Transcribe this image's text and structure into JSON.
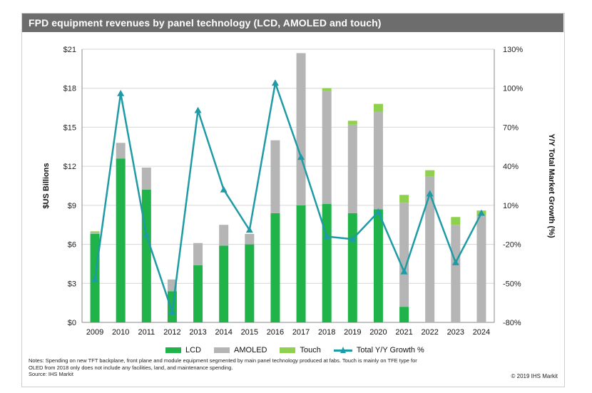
{
  "chart_data": {
    "type": "bar",
    "title": "FPD equipment revenues by panel technology (LCD, AMOLED and touch)",
    "categories": [
      "2009",
      "2010",
      "2011",
      "2012",
      "2013",
      "2014",
      "2015",
      "2016",
      "2017",
      "2018",
      "2019",
      "2020",
      "2021",
      "2022",
      "2023",
      "2024"
    ],
    "series": [
      {
        "name": "LCD",
        "type": "stacked-bar",
        "axis": "left",
        "color": "#1fb34a",
        "values": [
          6.8,
          12.6,
          10.2,
          2.4,
          4.4,
          5.9,
          6.0,
          8.4,
          9.0,
          9.1,
          8.4,
          8.7,
          1.2,
          0.0,
          0.0,
          0.0
        ]
      },
      {
        "name": "AMOLED",
        "type": "stacked-bar",
        "axis": "left",
        "color": "#b5b5b5",
        "values": [
          0.1,
          1.2,
          1.7,
          0.9,
          1.7,
          1.6,
          0.8,
          5.6,
          11.7,
          8.7,
          6.8,
          7.5,
          8.0,
          11.2,
          7.5,
          8.2
        ]
      },
      {
        "name": "Touch",
        "type": "stacked-bar",
        "axis": "left",
        "color": "#8fd14f",
        "values": [
          0.1,
          0.0,
          0.0,
          0.0,
          0.0,
          0.0,
          0.0,
          0.0,
          0.0,
          0.2,
          0.3,
          0.6,
          0.6,
          0.5,
          0.6,
          0.4
        ]
      },
      {
        "name": "Total Y/Y Growth %",
        "type": "line",
        "axis": "right",
        "color": "#1e9ba4",
        "values": [
          -47,
          96,
          -13,
          -72,
          83,
          22,
          -9,
          104,
          47,
          -14,
          -16,
          5,
          -41,
          19,
          -34,
          4
        ]
      }
    ],
    "ylabel": "$US Billions",
    "ylabel_right": "Y/Y Total Market Growth (%)",
    "ylim": [
      0,
      21
    ],
    "ylim_right": [
      -80,
      130
    ],
    "yticks": [
      "$0",
      "$3",
      "$6",
      "$9",
      "$12",
      "$15",
      "$18",
      "$21"
    ],
    "yticks_right": [
      "-80%",
      "-50%",
      "-20%",
      "10%",
      "40%",
      "70%",
      "100%",
      "130%"
    ],
    "grid": true,
    "legend_position": "bottom"
  },
  "notes": [
    "Notes: Spending on new TFT backplane, front plane and module equipment segmented by main panel technology produced at fabs. Touch is mainly on TFE type for",
    "OLED from 2018 only does not include any facilities, land, and maintenance spending.",
    "Source: IHS Markit"
  ],
  "copyright": "© 2019 IHS Markit"
}
